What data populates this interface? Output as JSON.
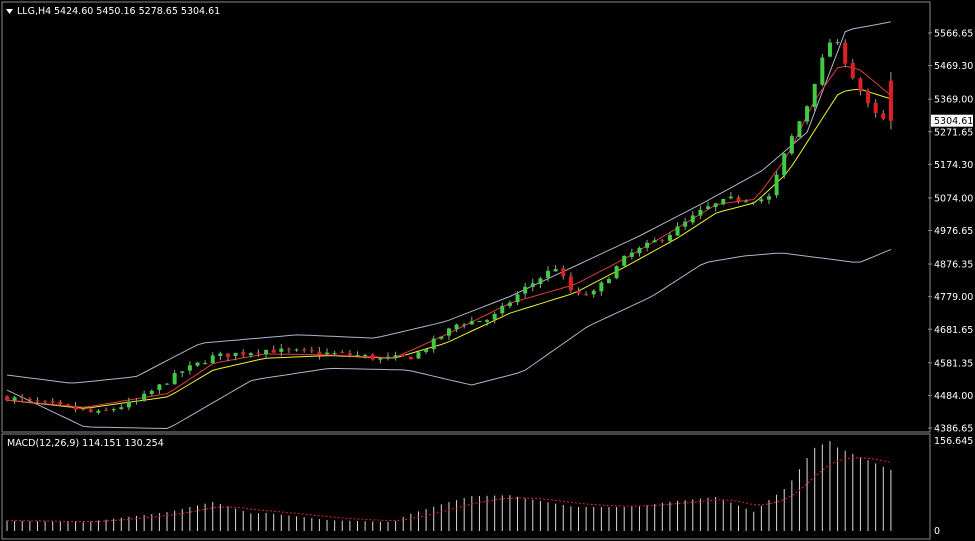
{
  "header": {
    "symbol": "LLG,H4",
    "ohlc": "5424.60 5450.16 5278.65 5304.61"
  },
  "macd": {
    "label": "MACD(12,26,9) 114.151 130.254",
    "scale_top": "156.645",
    "scale_zero": "0"
  },
  "chart_data": {
    "type": "candlestick",
    "symbol": "LLG",
    "timeframe": "H4",
    "last_price": 5304.61,
    "last_price_label": "5304.61",
    "y_ticks": [
      5566.65,
      5469.3,
      5369.0,
      5271.65,
      5174.3,
      5074.0,
      4976.65,
      4876.35,
      4779.0,
      4681.65,
      4581.35,
      4484.0,
      4386.65
    ],
    "y_tick_labels": [
      "5566.65",
      "5469.30",
      "5369.00",
      "5271.65",
      "5174.30",
      "5074.00",
      "4976.65",
      "4876.35",
      "4779.00",
      "4681.65",
      "4581.35",
      "4484.00",
      "4386.65"
    ],
    "ylim": [
      4386.65,
      5566.65
    ],
    "candle_count": 117,
    "close_path": [
      [
        0,
        4478
      ],
      [
        8,
        4452
      ],
      [
        14,
        4430
      ],
      [
        20,
        4465
      ],
      [
        27,
        4555
      ],
      [
        32,
        4600
      ],
      [
        40,
        4620
      ],
      [
        47,
        4612
      ],
      [
        54,
        4605
      ],
      [
        58,
        4592
      ],
      [
        63,
        4600
      ],
      [
        70,
        4700
      ],
      [
        75,
        4712
      ],
      [
        80,
        4800
      ],
      [
        85,
        4868
      ],
      [
        88,
        4780
      ],
      [
        91,
        4790
      ],
      [
        96,
        4900
      ],
      [
        103,
        4970
      ],
      [
        108,
        5040
      ],
      [
        112,
        5070
      ],
      [
        118,
        5070
      ],
      [
        121,
        5230
      ],
      [
        124,
        5350
      ],
      [
        126,
        5470
      ],
      [
        128,
        5560
      ],
      [
        131,
        5440
      ],
      [
        134,
        5330
      ],
      [
        136,
        5304.61
      ]
    ],
    "indicators": {
      "bollinger_upper": [
        [
          0,
          4545
        ],
        [
          10,
          4520
        ],
        [
          20,
          4540
        ],
        [
          30,
          4640
        ],
        [
          45,
          4665
        ],
        [
          57,
          4655
        ],
        [
          68,
          4705
        ],
        [
          78,
          4780
        ],
        [
          88,
          4870
        ],
        [
          98,
          4960
        ],
        [
          108,
          5060
        ],
        [
          117,
          5155
        ],
        [
          124,
          5270
        ],
        [
          130,
          5575
        ],
        [
          137,
          5600
        ]
      ],
      "bollinger_lower": [
        [
          0,
          4500
        ],
        [
          12,
          4390
        ],
        [
          25,
          4385
        ],
        [
          38,
          4530
        ],
        [
          50,
          4565
        ],
        [
          62,
          4560
        ],
        [
          72,
          4515
        ],
        [
          80,
          4555
        ],
        [
          90,
          4690
        ],
        [
          100,
          4780
        ],
        [
          108,
          4880
        ],
        [
          114,
          4900
        ],
        [
          120,
          4910
        ],
        [
          126,
          4895
        ],
        [
          132,
          4880
        ],
        [
          137,
          4920
        ]
      ],
      "bollinger_middle": [
        [
          0,
          4470
        ],
        [
          12,
          4455
        ],
        [
          25,
          4470
        ],
        [
          38,
          4590
        ],
        [
          50,
          4605
        ],
        [
          62,
          4600
        ],
        [
          72,
          4645
        ],
        [
          80,
          4720
        ],
        [
          88,
          4790
        ],
        [
          98,
          4890
        ],
        [
          108,
          4980
        ],
        [
          117,
          5060
        ],
        [
          124,
          5180
        ],
        [
          130,
          5280
        ],
        [
          137,
          5300
        ]
      ],
      "ema_fast": [
        [
          0,
          4470
        ],
        [
          12,
          4448
        ],
        [
          25,
          4490
        ],
        [
          32,
          4580
        ],
        [
          40,
          4608
        ],
        [
          50,
          4605
        ],
        [
          60,
          4596
        ],
        [
          68,
          4665
        ],
        [
          78,
          4760
        ],
        [
          88,
          4815
        ],
        [
          96,
          4895
        ],
        [
          104,
          4985
        ],
        [
          110,
          5055
        ],
        [
          116,
          5070
        ],
        [
          121,
          5200
        ],
        [
          125,
          5360
        ],
        [
          129,
          5470
        ],
        [
          132,
          5460
        ],
        [
          137,
          5380
        ]
      ],
      "ema_slow": [
        [
          0,
          4470
        ],
        [
          12,
          4445
        ],
        [
          25,
          4480
        ],
        [
          32,
          4560
        ],
        [
          40,
          4595
        ],
        [
          50,
          4603
        ],
        [
          60,
          4595
        ],
        [
          68,
          4640
        ],
        [
          78,
          4730
        ],
        [
          88,
          4790
        ],
        [
          96,
          4870
        ],
        [
          104,
          4955
        ],
        [
          110,
          5030
        ],
        [
          116,
          5060
        ],
        [
          121,
          5150
        ],
        [
          125,
          5270
        ],
        [
          129,
          5390
        ],
        [
          132,
          5400
        ],
        [
          137,
          5370
        ]
      ],
      "macd_histogram_max": 156.645
    }
  },
  "colors": {
    "background": "#000000",
    "bull": "#43c943",
    "bear": "#e02020",
    "wick": "#9aa09a",
    "bollinger": "#b0b4cc",
    "ema_fast": "#e03c3c",
    "ema_slow": "#f2f22a",
    "macd_bar": "#d8d8d8",
    "macd_signal": "#e02828",
    "text": "#ffffff",
    "border": "#8a8a8a"
  }
}
